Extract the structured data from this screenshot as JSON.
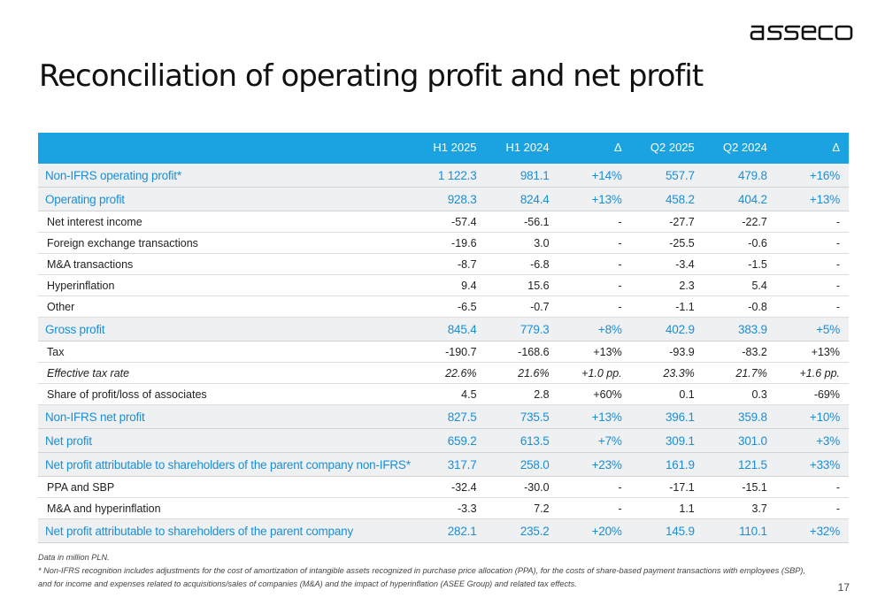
{
  "brand": {
    "logo_text": "asseco"
  },
  "title": "Reconciliation of operating profit and net profit",
  "table": {
    "columns": [
      "",
      "H1 2025",
      "H1 2024",
      "Δ",
      "Q2 2025",
      "Q2 2024",
      "Δ"
    ],
    "rows": [
      {
        "label": "Non-IFRS operating profit*",
        "values": [
          "1 122.3",
          "981.1",
          "+14%",
          "557.7",
          "479.8",
          "+16%"
        ],
        "style": "highlight"
      },
      {
        "label": "Operating profit",
        "values": [
          "928.3",
          "824.4",
          "+13%",
          "458.2",
          "404.2",
          "+13%"
        ],
        "style": "highlight"
      },
      {
        "label": "Net interest income",
        "values": [
          "-57.4",
          "-56.1",
          "-",
          "-27.7",
          "-22.7",
          "-"
        ],
        "style": "normal"
      },
      {
        "label": "Foreign exchange transactions",
        "values": [
          "-19.6",
          "3.0",
          "-",
          "-25.5",
          "-0.6",
          "-"
        ],
        "style": "normal"
      },
      {
        "label": "M&A transactions",
        "values": [
          "-8.7",
          "-6.8",
          "-",
          "-3.4",
          "-1.5",
          "-"
        ],
        "style": "normal"
      },
      {
        "label": "Hyperinflation",
        "values": [
          "9.4",
          "15.6",
          "-",
          "2.3",
          "5.4",
          "-"
        ],
        "style": "normal"
      },
      {
        "label": "Other",
        "values": [
          "-6.5",
          "-0.7",
          "-",
          "-1.1",
          "-0.8",
          "-"
        ],
        "style": "normal"
      },
      {
        "label": "Gross profit",
        "values": [
          "845.4",
          "779.3",
          "+8%",
          "402.9",
          "383.9",
          "+5%"
        ],
        "style": "highlight"
      },
      {
        "label": "Tax",
        "values": [
          "-190.7",
          "-168.6",
          "+13%",
          "-93.9",
          "-83.2",
          "+13%"
        ],
        "style": "normal"
      },
      {
        "label": "Effective tax rate",
        "values": [
          "22.6%",
          "21.6%",
          "+1.0 pp.",
          "23.3%",
          "21.7%",
          "+1.6 pp."
        ],
        "style": "italic"
      },
      {
        "label": "Share of profit/loss of associates",
        "values": [
          "4.5",
          "2.8",
          "+60%",
          "0.1",
          "0.3",
          "-69%"
        ],
        "style": "normal"
      },
      {
        "label": "Non-IFRS net profit",
        "values": [
          "827.5",
          "735.5",
          "+13%",
          "396.1",
          "359.8",
          "+10%"
        ],
        "style": "highlight"
      },
      {
        "label": "Net profit",
        "values": [
          "659.2",
          "613.5",
          "+7%",
          "309.1",
          "301.0",
          "+3%"
        ],
        "style": "highlight"
      },
      {
        "label": "Net profit attributable to shareholders of the parent company non-IFRS*",
        "values": [
          "317.7",
          "258.0",
          "+23%",
          "161.9",
          "121.5",
          "+33%"
        ],
        "style": "highlight"
      },
      {
        "label": "PPA and SBP",
        "values": [
          "-32.4",
          "-30.0",
          "-",
          "-17.1",
          "-15.1",
          "-"
        ],
        "style": "normal"
      },
      {
        "label": "M&A and hyperinflation",
        "values": [
          "-3.3",
          "7.2",
          "-",
          "1.1",
          "3.7",
          "-"
        ],
        "style": "normal"
      },
      {
        "label": "Net profit attributable to shareholders of the parent company",
        "values": [
          "282.1",
          "235.2",
          "+20%",
          "145.9",
          "110.1",
          "+32%"
        ],
        "style": "highlight"
      }
    ]
  },
  "footnotes": [
    "Data in million PLN.",
    "* Non-IFRS recognition includes adjustments for the cost of amortization of intangible assets recognized in purchase price allocation (PPA), for the costs of share-based payment transactions with employees (SBP),",
    "and for income and expenses related to acquisitions/sales of companies (M&A) and the impact of hyperinflation (ASEE Group) and related tax effects."
  ],
  "page_number": "17",
  "colors": {
    "accent": "#1aa3e0",
    "highlight_text": "#1a8fd6",
    "highlight_bg": "#eef0f1"
  }
}
